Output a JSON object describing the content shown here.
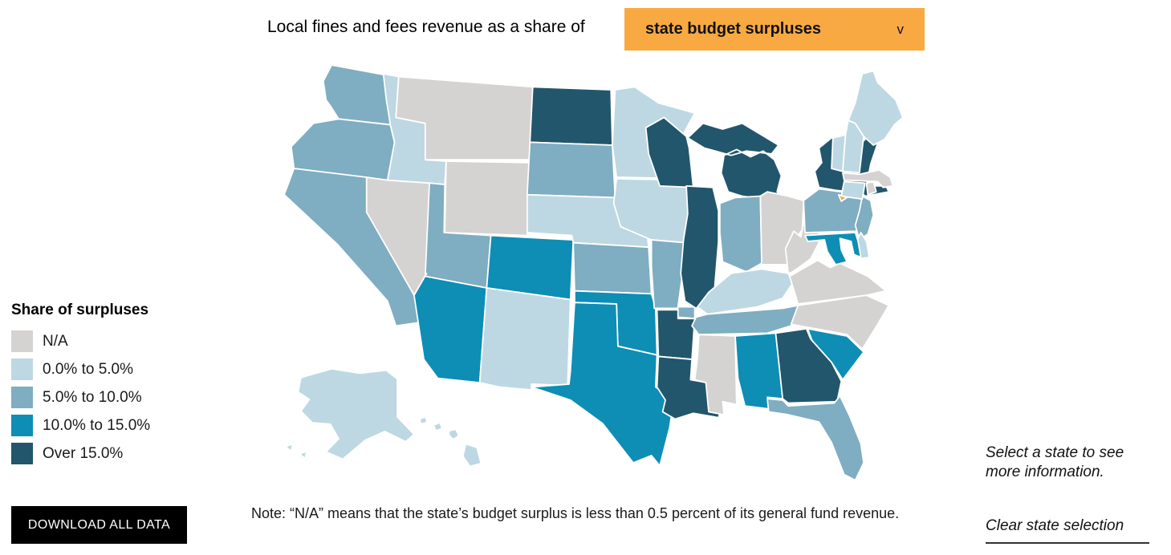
{
  "title": {
    "text": "Local fines and fees revenue as a share of"
  },
  "dropdown": {
    "value": "state budget surpluses",
    "chevron": "v"
  },
  "colors": {
    "accent": "#f8a941",
    "button_bg": "#000000",
    "state_border": "#ffffff"
  },
  "legend": {
    "title": "Share of surpluses",
    "items": [
      {
        "key": "na",
        "label": "N/A",
        "color": "#d5d3d1"
      },
      {
        "key": "b1",
        "label": "0.0% to 5.0%",
        "color": "#bdd8e2"
      },
      {
        "key": "b2",
        "label": "5.0% to 10.0%",
        "color": "#7fadc1"
      },
      {
        "key": "b3",
        "label": "10.0% to 15.0%",
        "color": "#0e8db5"
      },
      {
        "key": "b4",
        "label": "Over 15.0%",
        "color": "#22566c"
      }
    ]
  },
  "download": {
    "label": "DOWNLOAD ALL DATA"
  },
  "note": {
    "text": "Note: “N/A” means that the state’s budget surplus is less than 0.5 percent of its general fund revenue."
  },
  "aside": {
    "hint": "Select a state to see more information.",
    "clear_label": "Clear state selection"
  },
  "chart_data": {
    "type": "choropleth",
    "title": "Local fines and fees revenue as a share of state budget surpluses",
    "legend_title": "Share of surpluses",
    "bins": {
      "na": "N/A",
      "b1": "0.0% to 5.0%",
      "b2": "5.0% to 10.0%",
      "b3": "10.0% to 15.0%",
      "b4": "Over 15.0%"
    },
    "states": {
      "WA": "b2",
      "OR": "b2",
      "CA": "b2",
      "NV": "na",
      "ID": "b1",
      "MT": "na",
      "WY": "na",
      "UT": "b2",
      "CO": "b3",
      "AZ": "b3",
      "NM": "b1",
      "ND": "b4",
      "SD": "b2",
      "NE": "b1",
      "KS": "b2",
      "OK": "b3",
      "TX": "b3",
      "MN": "b1",
      "IA": "b1",
      "MO": "b2",
      "AR": "b4",
      "LA": "b4",
      "WI": "b4",
      "IL": "b4",
      "MI": "b4",
      "IN": "b2",
      "OH": "na",
      "KY": "b1",
      "TN": "b2",
      "MS": "na",
      "AL": "b3",
      "GA": "b4",
      "FL": "b2",
      "SC": "b3",
      "NC": "na",
      "VA": "na",
      "WV": "na",
      "PA": "b2",
      "NY": "b4",
      "NJ": "b2",
      "DE": "b1",
      "MD": "b3",
      "VT": "b1",
      "NH": "b1",
      "MA": "na",
      "CT": "b1",
      "RI": "na",
      "ME": "b1",
      "AK": "b1",
      "HI": "b1"
    }
  }
}
